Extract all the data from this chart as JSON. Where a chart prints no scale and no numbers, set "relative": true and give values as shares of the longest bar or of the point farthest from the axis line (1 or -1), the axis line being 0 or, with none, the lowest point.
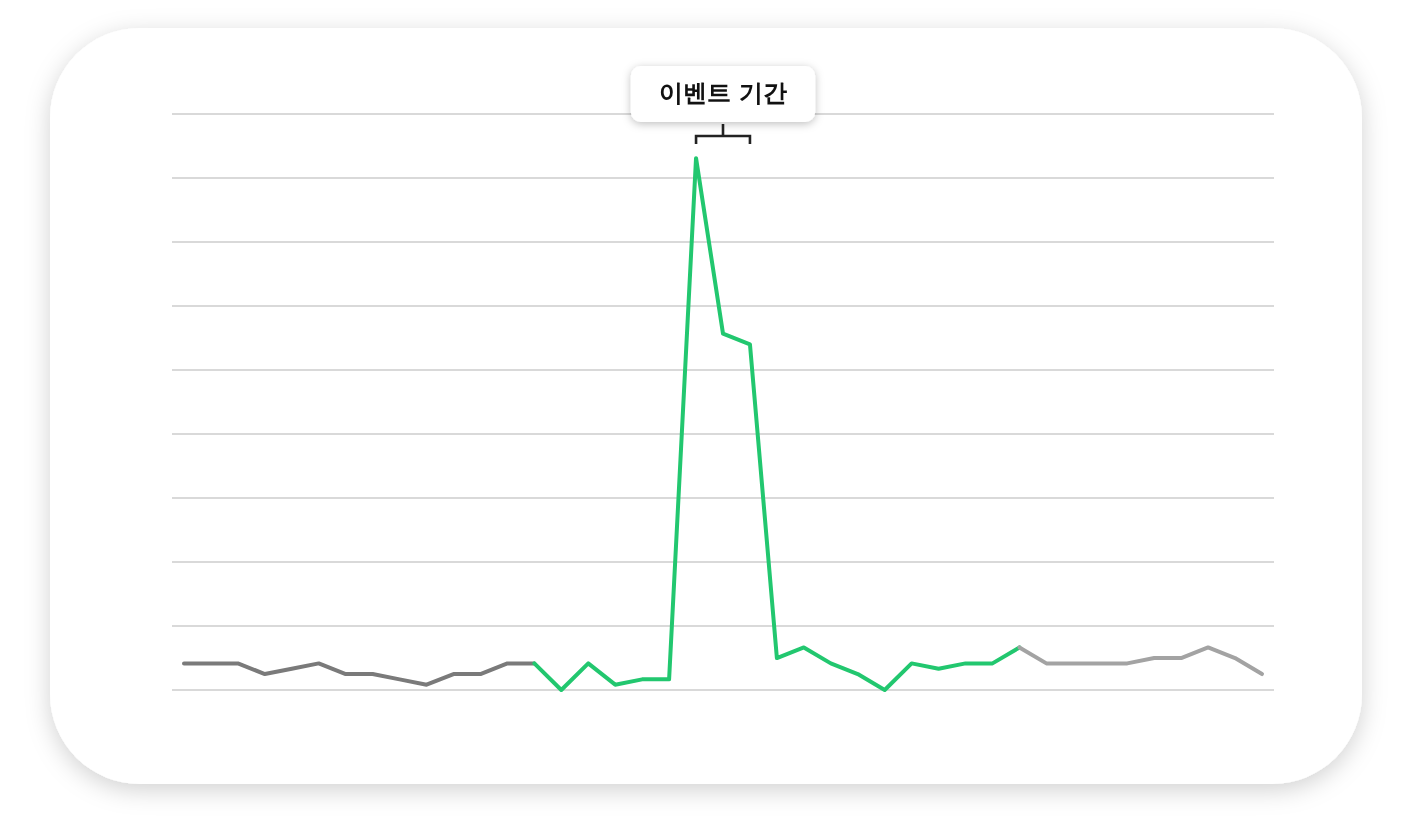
{
  "chart_data": {
    "type": "line",
    "relative": true,
    "grid": "y",
    "marker": "none",
    "line_style": "solid",
    "categories": [
      null,
      null,
      null,
      null,
      null,
      null,
      null,
      null,
      null,
      null,
      null,
      null,
      null,
      null,
      null,
      null,
      null,
      null,
      null,
      null,
      null,
      null,
      null,
      null,
      null,
      null,
      null,
      null,
      null,
      null,
      null,
      null,
      null,
      null,
      null,
      null,
      null,
      null,
      null,
      null,
      null
    ],
    "series": [
      {
        "color": "#7a7a7a",
        "values": [
          0.05,
          0.05,
          0.05,
          0.03,
          0.04,
          0.05,
          0.03,
          0.03,
          0.02,
          0.01,
          0.03,
          0.03,
          0.05,
          0.05,
          null,
          null,
          null,
          null,
          null,
          null,
          null,
          null,
          null,
          null,
          null,
          null,
          null,
          null,
          null,
          null,
          null,
          null,
          null,
          null,
          null,
          null,
          null,
          null,
          null,
          null,
          null
        ]
      },
      {
        "color": "#22c76f",
        "values": [
          null,
          null,
          null,
          null,
          null,
          null,
          null,
          null,
          null,
          null,
          null,
          null,
          null,
          0.05,
          0,
          0.05,
          0.01,
          0.02,
          0.02,
          1,
          0.67,
          0.65,
          0.06,
          0.08,
          0.05,
          0.03,
          0,
          0.05,
          0.04,
          0.05,
          0.05,
          0.08,
          null,
          null,
          null,
          null,
          null,
          null,
          null,
          null,
          null
        ]
      },
      {
        "color": "#a3a3a3",
        "values": [
          null,
          null,
          null,
          null,
          null,
          null,
          null,
          null,
          null,
          null,
          null,
          null,
          null,
          null,
          null,
          null,
          null,
          null,
          null,
          null,
          null,
          null,
          null,
          null,
          null,
          null,
          null,
          null,
          null,
          null,
          null,
          0.08,
          0.05,
          0.05,
          0.05,
          0.05,
          0.06,
          0.06,
          0.08,
          0.06,
          0.03
        ]
      }
    ],
    "annotations": [
      "이벤트 기간"
    ]
  }
}
